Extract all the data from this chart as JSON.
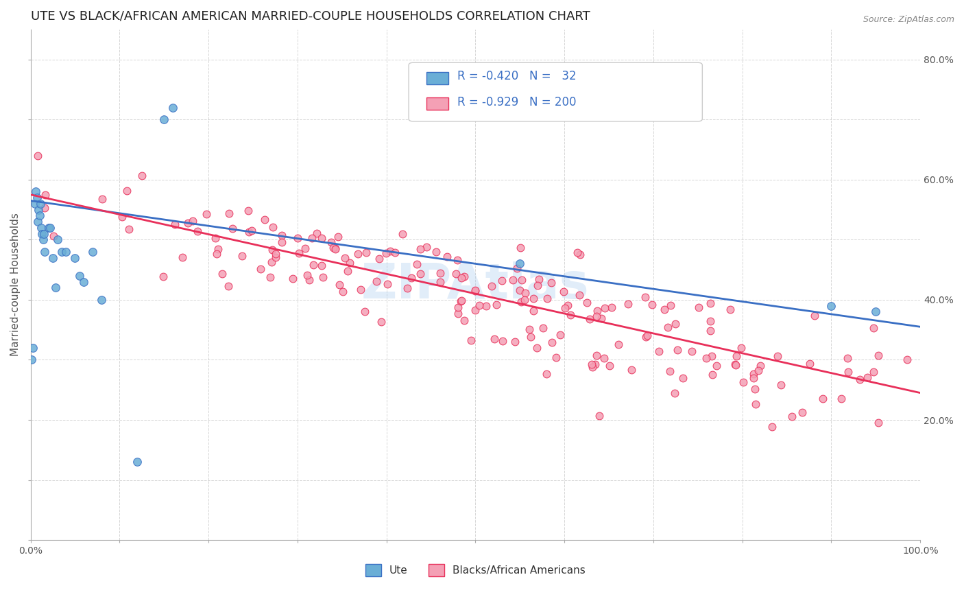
{
  "title": "UTE VS BLACK/AFRICAN AMERICAN MARRIED-COUPLE HOUSEHOLDS CORRELATION CHART",
  "source": "Source: ZipAtlas.com",
  "ylabel": "Married-couple Households",
  "xlim": [
    0,
    1
  ],
  "ylim": [
    0,
    0.85
  ],
  "right_yticks": [
    0.2,
    0.4,
    0.6,
    0.8
  ],
  "right_yticklabels": [
    "20.0%",
    "40.0%",
    "60.0%",
    "80.0%"
  ],
  "legend_R1": "-0.420",
  "legend_N1": "32",
  "legend_R2": "-0.929",
  "legend_N2": "200",
  "legend_label1": "Ute",
  "legend_label2": "Blacks/African Americans",
  "color_ute": "#6aaed6",
  "color_baa": "#f4a0b5",
  "color_ute_line": "#3a6fc4",
  "color_baa_line": "#e8305a",
  "color_legend_text": "#3a6fc4",
  "watermark": "ZIPAtlas",
  "ute_scatter_x": [
    0.001,
    0.003,
    0.005,
    0.006,
    0.007,
    0.008,
    0.009,
    0.01,
    0.011,
    0.012,
    0.013,
    0.014,
    0.015,
    0.016,
    0.02,
    0.022,
    0.025,
    0.028,
    0.03,
    0.035,
    0.04,
    0.05,
    0.055,
    0.06,
    0.07,
    0.08,
    0.12,
    0.15,
    0.16,
    0.55,
    0.9,
    0.95
  ],
  "ute_scatter_y": [
    0.3,
    0.32,
    0.56,
    0.58,
    0.57,
    0.53,
    0.55,
    0.54,
    0.56,
    0.52,
    0.51,
    0.5,
    0.51,
    0.48,
    0.52,
    0.52,
    0.47,
    0.42,
    0.5,
    0.48,
    0.48,
    0.47,
    0.44,
    0.43,
    0.48,
    0.4,
    0.13,
    0.7,
    0.72,
    0.46,
    0.39,
    0.38
  ],
  "baa_scatter_seed": 42,
  "ute_line_x": [
    0.0,
    1.0
  ],
  "ute_line_y": [
    0.565,
    0.355
  ],
  "baa_line_x": [
    0.0,
    1.0
  ],
  "baa_line_y": [
    0.575,
    0.245
  ],
  "background_color": "#ffffff",
  "grid_color": "#cccccc",
  "title_fontsize": 13,
  "axis_label_fontsize": 11,
  "tick_fontsize": 10,
  "legend_fontsize": 12
}
